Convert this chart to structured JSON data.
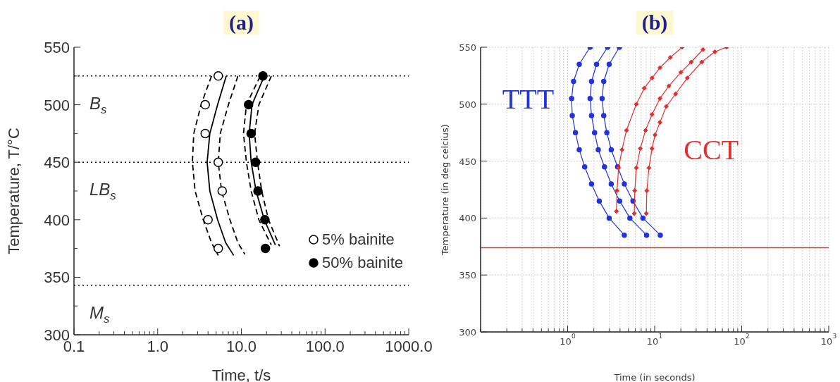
{
  "chart_data": [
    {
      "type": "scatter",
      "title": "(a)",
      "xlabel": "Time, t/s",
      "ylabel": "Temperature, T/°C",
      "log": "x",
      "xlim": [
        0.1,
        1000
      ],
      "ylim": [
        300,
        550
      ],
      "xticks": [
        0.1,
        {
          "value": 0.2,
          "label": null
        },
        {
          "value": 0.3,
          "label": null
        },
        {
          "value": 0.4,
          "label": null
        },
        {
          "value": 0.5,
          "label": null
        },
        {
          "value": 0.6,
          "label": null
        },
        {
          "value": 0.7,
          "label": null
        },
        {
          "value": 0.8,
          "label": null
        },
        {
          "value": 0.9,
          "label": null
        },
        {
          "value": 1,
          "label": "1.0"
        },
        {
          "value": 2,
          "label": null
        },
        {
          "value": 3,
          "label": null
        },
        {
          "value": 4,
          "label": null
        },
        {
          "value": 5,
          "label": null
        },
        {
          "value": 6,
          "label": null
        },
        {
          "value": 7,
          "label": null
        },
        {
          "value": 8,
          "label": null
        },
        {
          "value": 9,
          "label": null
        },
        {
          "value": 10,
          "label": "10.0"
        },
        {
          "value": 20,
          "label": null
        },
        {
          "value": 30,
          "label": null
        },
        {
          "value": 40,
          "label": null
        },
        {
          "value": 50,
          "label": null
        },
        {
          "value": 60,
          "label": null
        },
        {
          "value": 70,
          "label": null
        },
        {
          "value": 80,
          "label": null
        },
        {
          "value": 90,
          "label": null
        },
        {
          "value": 100,
          "label": "100.0"
        },
        {
          "value": 200,
          "label": null
        },
        {
          "value": 300,
          "label": null
        },
        {
          "value": 400,
          "label": null
        },
        {
          "value": 500,
          "label": null
        },
        {
          "value": 600,
          "label": null
        },
        {
          "value": 700,
          "label": null
        },
        {
          "value": 800,
          "label": null
        },
        {
          "value": 900,
          "label": null
        },
        {
          "value": 1000,
          "label": "1000.0"
        }
      ],
      "yticks": [
        300,
        {
          "value": 325,
          "label": null
        },
        350,
        {
          "value": 375,
          "label": null
        },
        400,
        {
          "value": 425,
          "label": null
        },
        450,
        {
          "value": 475,
          "label": null
        },
        500,
        {
          "value": 525,
          "label": null
        },
        550
      ],
      "grid": false,
      "legend": "bottom right",
      "ref_lines": [
        {
          "axis": "y",
          "value": 525,
          "label": "B$_{s}$",
          "color": "#000000",
          "line_style": "dotted"
        },
        {
          "axis": "y",
          "value": 450,
          "label": "LB$_{s}$",
          "color": "#000000",
          "line_style": "dotted"
        },
        {
          "axis": "y",
          "value": 343,
          "label": "M$_{s}$",
          "color": "#000000",
          "line_style": "dotted"
        }
      ],
      "series": [
        {
          "type": "line",
          "color": "#000000",
          "line_style": "dashed",
          "marker": "none",
          "x": [
            4.4,
            3.3,
            2.7,
            2.6,
            2.8,
            3.5,
            4.4,
            5.3
          ],
          "values": [
            525,
            500,
            475,
            450,
            425,
            400,
            380,
            369
          ]
        },
        {
          "type": "line",
          "color": "#000000",
          "line_style": "solid",
          "marker": "none",
          "x": [
            6.6,
            5.2,
            4.2,
            3.9,
            4.2,
            5.2,
            6.5,
            8.1
          ],
          "values": [
            525,
            500,
            475,
            450,
            425,
            400,
            380,
            369
          ]
        },
        {
          "type": "line",
          "color": "#000000",
          "line_style": "dashed",
          "marker": "none",
          "x": [
            9.1,
            7.0,
            5.6,
            5.3,
            5.8,
            7.3,
            9.1,
            11.0
          ],
          "values": [
            525,
            500,
            475,
            450,
            425,
            400,
            380,
            370
          ]
        },
        {
          "type": "line",
          "color": "#000000",
          "line_style": "dashed",
          "marker": "none",
          "x": [
            16.8,
            11.5,
            10.6,
            11.5,
            13.1,
            16.2,
            22.8
          ],
          "values": [
            525,
            500,
            475,
            450,
            425,
            400,
            378
          ]
        },
        {
          "type": "line",
          "color": "#000000",
          "line_style": "solid",
          "marker": "none",
          "x": [
            18.8,
            13.4,
            12.4,
            13.1,
            15.0,
            18.8,
            25.5
          ],
          "values": [
            525,
            500,
            475,
            450,
            425,
            400,
            378
          ]
        },
        {
          "type": "line",
          "color": "#000000",
          "line_style": "dashed",
          "marker": "none",
          "x": [
            22.8,
            16.2,
            14.4,
            15.6,
            17.5,
            21.1,
            28.6
          ],
          "values": [
            525,
            500,
            475,
            450,
            425,
            400,
            377
          ]
        },
        {
          "type": "scatter",
          "name": "5% bainite",
          "color": "#ffffff",
          "marker": "circle",
          "x": [
            5.3,
            3.7,
            3.7,
            5.3,
            5.9,
            4.0,
            5.3
          ],
          "values": [
            525,
            500,
            475,
            450,
            425,
            400,
            375
          ]
        },
        {
          "type": "scatter",
          "name": "50% bainite",
          "color": "#000000",
          "marker": "circle",
          "x": [
            18.1,
            12.2,
            13.1,
            14.8,
            15.8,
            19.1,
            19.4
          ],
          "values": [
            525,
            500,
            475,
            450,
            425,
            400,
            375
          ]
        }
      ]
    },
    {
      "type": "line",
      "title": "(b)",
      "xlabel": "Time (in seconds)",
      "ylabel": "Temperature (in deg celcius)",
      "log": "x",
      "xlim": [
        0.1,
        1000
      ],
      "ylim": [
        300,
        550
      ],
      "xticks": [
        {
          "value": 0.1,
          "label": null
        },
        {
          "value": 0.2,
          "label": null
        },
        {
          "value": 0.3,
          "label": null
        },
        {
          "value": 0.4,
          "label": null
        },
        {
          "value": 0.5,
          "label": null
        },
        {
          "value": 0.6,
          "label": null
        },
        {
          "value": 0.7,
          "label": null
        },
        {
          "value": 0.8,
          "label": null
        },
        {
          "value": 0.9,
          "label": null
        },
        {
          "value": 1,
          "label": "10$^{0}$"
        },
        {
          "value": 2,
          "label": null
        },
        {
          "value": 3,
          "label": null
        },
        {
          "value": 4,
          "label": null
        },
        {
          "value": 5,
          "label": null
        },
        {
          "value": 6,
          "label": null
        },
        {
          "value": 7,
          "label": null
        },
        {
          "value": 8,
          "label": null
        },
        {
          "value": 9,
          "label": null
        },
        {
          "value": 10,
          "label": "10$^{1}$"
        },
        {
          "value": 20,
          "label": null
        },
        {
          "value": 30,
          "label": null
        },
        {
          "value": 40,
          "label": null
        },
        {
          "value": 50,
          "label": null
        },
        {
          "value": 60,
          "label": null
        },
        {
          "value": 70,
          "label": null
        },
        {
          "value": 80,
          "label": null
        },
        {
          "value": 90,
          "label": null
        },
        {
          "value": 100,
          "label": "10$^{2}$"
        },
        {
          "value": 200,
          "label": null
        },
        {
          "value": 300,
          "label": null
        },
        {
          "value": 400,
          "label": null
        },
        {
          "value": 500,
          "label": null
        },
        {
          "value": 600,
          "label": null
        },
        {
          "value": 700,
          "label": null
        },
        {
          "value": 800,
          "label": null
        },
        {
          "value": 900,
          "label": null
        },
        {
          "value": 1000,
          "label": "10$^{3}$"
        }
      ],
      "yticks": [
        300,
        350,
        400,
        450,
        500,
        550
      ],
      "grid": true,
      "legend": false,
      "ref_lines": [
        {
          "axis": "y",
          "value": 374,
          "label": null,
          "color": "#e03030",
          "line_style": "solid"
        }
      ],
      "series": [
        {
          "name": "TTT",
          "color": "#2233dd",
          "marker": "circle",
          "x": [
            1.81,
            1.36,
            1.17,
            1.11,
            1.13,
            1.23,
            1.36,
            1.57,
            1.88,
            2.31,
            3.0,
            4.48
          ],
          "values": [
            550,
            535,
            520,
            505,
            490,
            475,
            460,
            445,
            430,
            415,
            400,
            385
          ]
        },
        {
          "color": "#2233dd",
          "marker": "circle",
          "x": [
            2.88,
            2.15,
            1.88,
            1.81,
            1.88,
            2.04,
            2.25,
            2.65,
            3.17,
            3.96,
            5.19,
            8.07
          ],
          "values": [
            550,
            535,
            520,
            505,
            490,
            475,
            460,
            445,
            430,
            415,
            400,
            385
          ]
        },
        {
          "color": "#2233dd",
          "marker": "circle",
          "x": [
            3.93,
            3.0,
            2.6,
            2.49,
            2.6,
            2.82,
            3.17,
            3.75,
            4.48,
            5.63,
            7.33,
            11.6
          ],
          "values": [
            550,
            535,
            520,
            505,
            490,
            475,
            460,
            445,
            430,
            415,
            400,
            385
          ]
        },
        {
          "name": "CCT",
          "color": "#e03030",
          "marker": "diamond",
          "x": [
            3.64,
            3.69,
            3.85,
            4.22,
            4.74,
            6.16,
            7.59,
            9.33,
            11.5,
            15.1,
            20.7
          ],
          "values": [
            406,
            424,
            444,
            460,
            477,
            500,
            514,
            523,
            532,
            541,
            550
          ]
        },
        {
          "color": "#e03030",
          "marker": "diamond",
          "x": [
            5.83,
            5.91,
            6.16,
            6.84,
            7.85,
            9.33,
            11.5,
            14.6,
            20.0,
            26.3,
            35.9
          ],
          "values": [
            404,
            424,
            444,
            461,
            477,
            491,
            505,
            516,
            528,
            537,
            548
          ]
        },
        {
          "color": "#e03030",
          "marker": "diamond",
          "x": [
            8.02,
            8.13,
            8.59,
            9.33,
            10.1,
            11.5,
            13.6,
            17.4,
            23.7,
            34.7,
            49.1,
            67.0
          ],
          "values": [
            404,
            424,
            444,
            461,
            473,
            484,
            498,
            509,
            523,
            537,
            546,
            550
          ]
        }
      ]
    }
  ]
}
